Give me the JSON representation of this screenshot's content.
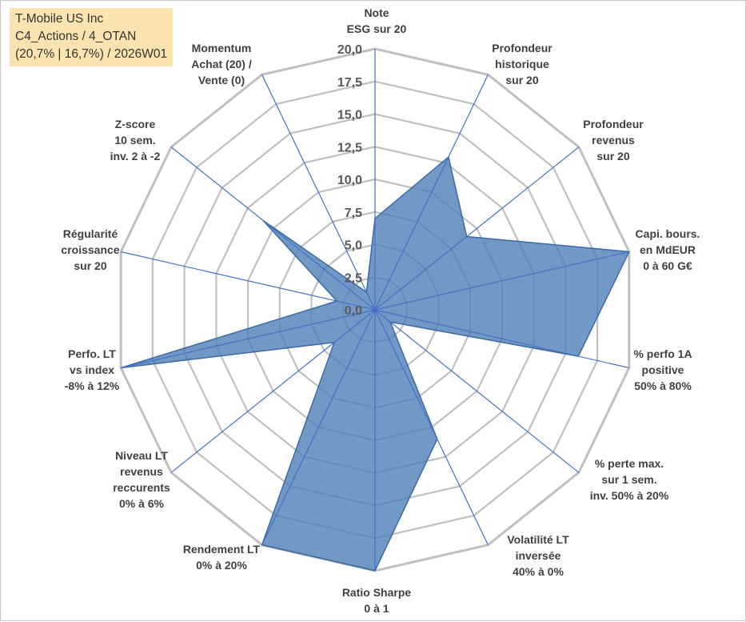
{
  "header": {
    "lines": [
      "T-Mobile US Inc",
      "C4_Actions / 4_OTAN",
      "(20,7% | 16,7%) / 2026W01"
    ]
  },
  "colors": {
    "series_fill": "#4f7fb8",
    "series_stroke": "#3d6aa3",
    "grid": "#c0c0c0",
    "spoke": "#4472c4",
    "title_bg": "#fce4b0"
  },
  "chart_data": {
    "type": "radar",
    "range": [
      0,
      20
    ],
    "tick_values": [
      0,
      2.5,
      5,
      7.5,
      10,
      12.5,
      15,
      17.5,
      20
    ],
    "tick_labels": [
      "0,0",
      "2,5",
      "5,0",
      "7,5",
      "10,0",
      "12,5",
      "15,0",
      "17,5",
      "20,0"
    ],
    "grid": true,
    "axes": [
      {
        "label": [
          "Note",
          "ESG sur 20"
        ],
        "value": 7.0
      },
      {
        "label": [
          "Profondeur",
          "historique",
          "sur 20"
        ],
        "value": 13.0
      },
      {
        "label": [
          "Profondeur",
          "revenus",
          "sur 20"
        ],
        "value": 9.0
      },
      {
        "label": [
          "Capi. bours.",
          "en MdEUR",
          "0 à 60 G€"
        ],
        "value": 20.0
      },
      {
        "label": [
          "% perfo 1A",
          "positive",
          "50% à 80%"
        ],
        "value": 16.0
      },
      {
        "label": [
          "% perte max.",
          "sur 1 sem.",
          "inv. 50% à 20%"
        ],
        "value": 1.5
      },
      {
        "label": [
          "Volatilité LT",
          "inversée",
          "40% à 0%"
        ],
        "value": 11.0
      },
      {
        "label": [
          "Ratio Sharpe",
          "0 à 1"
        ],
        "value": 20.0
      },
      {
        "label": [
          "Rendement LT",
          "0% à 20%"
        ],
        "value": 20.0
      },
      {
        "label": [
          "Niveau LT",
          "revenus",
          "reccurents",
          "0% à 6%"
        ],
        "value": 4.0
      },
      {
        "label": [
          "Perfo. LT",
          "vs index",
          "-8% à 12%"
        ],
        "value": 20.0
      },
      {
        "label": [
          "Régularité",
          "croissance",
          "sur 20"
        ],
        "value": 3.0
      },
      {
        "label": [
          "Z-score",
          "10 sem.",
          "inv. 2 à -2"
        ],
        "value": 11.0
      },
      {
        "label": [
          "Momentum",
          "Achat (20) /",
          "Vente (0)"
        ],
        "value": 1.5
      }
    ]
  }
}
